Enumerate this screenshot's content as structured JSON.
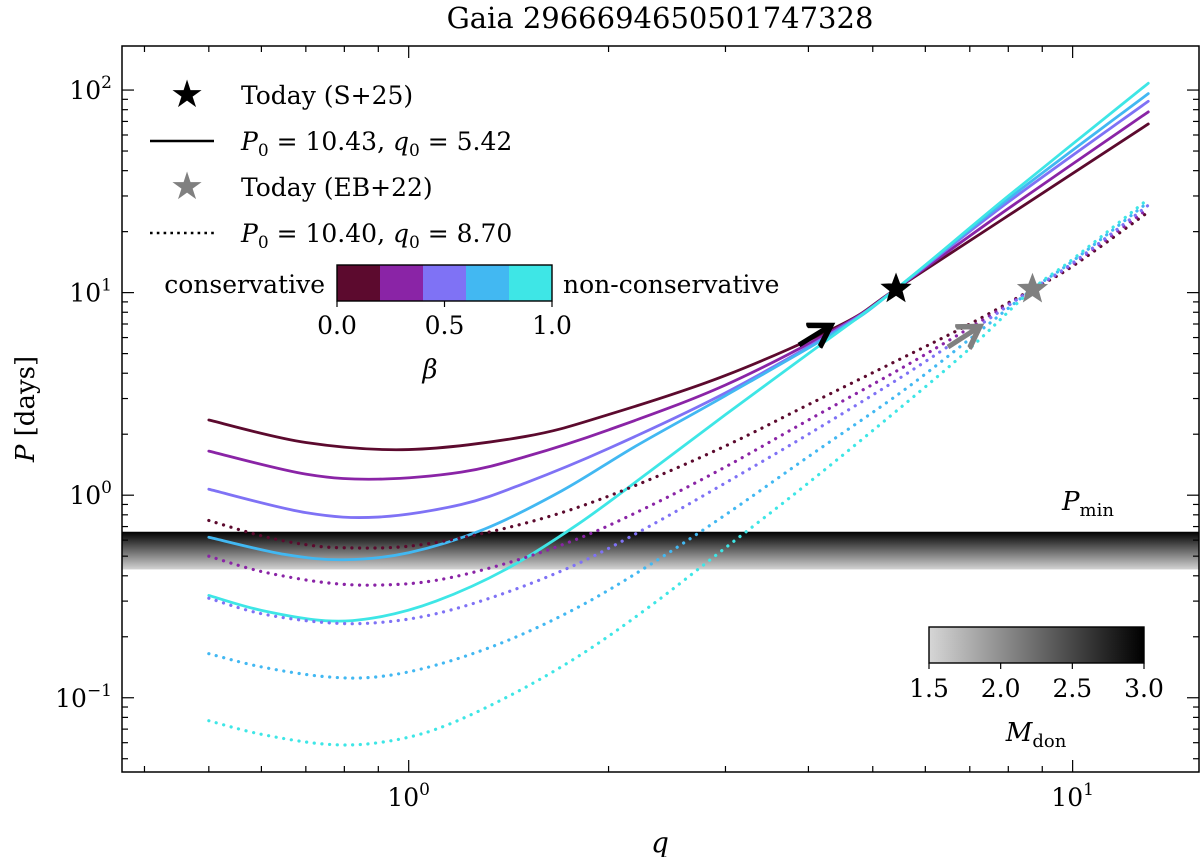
{
  "chart_data": {
    "type": "line",
    "title": "Gaia 2966694650501747328",
    "xlabel_var": "q",
    "ylabel_var": "P",
    "ylabel_unit": "[days]",
    "xscale": "log",
    "yscale": "log",
    "xlim": [
      0.37,
      15.5
    ],
    "ylim": [
      0.043,
      165
    ],
    "x_ticks": [
      {
        "value": 1,
        "base": "10",
        "exp": "0"
      },
      {
        "value": 10,
        "base": "10",
        "exp": "1"
      }
    ],
    "y_ticks": [
      {
        "value": 0.1,
        "base": "10",
        "exp": "−1"
      },
      {
        "value": 1,
        "base": "10",
        "exp": "0"
      },
      {
        "value": 10,
        "base": "10",
        "exp": "1"
      },
      {
        "value": 100,
        "base": "10",
        "exp": "2"
      }
    ],
    "legend": {
      "today_s25": "Today (S+25)",
      "solid_sym": "P",
      "solid_sub": "0",
      "solid_rest": " = 10.43, ",
      "solid_q": "q",
      "solid_qsub": "0",
      "solid_qval": " = 5.42",
      "today_eb22": "Today (EB+22)",
      "dotted_sym": "P",
      "dotted_sub": "0",
      "dotted_rest": " = 10.40, ",
      "dotted_q": "q",
      "dotted_qsub": "0",
      "dotted_qval": " = 8.70"
    },
    "beta_colorbar": {
      "left_label": "conservative",
      "right_label": "non-conservative",
      "ticks": [
        "0.0",
        "0.5",
        "1.0"
      ],
      "label": "β",
      "colors": [
        "#5c0a2e",
        "#8a24a6",
        "#7f72f5",
        "#42b8f2",
        "#3ee6e6"
      ]
    },
    "pmin": {
      "label_main": "P",
      "label_sub": "min",
      "y_range": [
        0.43,
        0.66
      ]
    },
    "mdon_colorbar": {
      "ticks": [
        "1.5",
        "2.0",
        "2.5",
        "3.0"
      ],
      "label_main": "M",
      "label_sub": "don"
    },
    "today_points": [
      {
        "name": "S+25",
        "q": 5.42,
        "P": 10.43,
        "color": "#000000"
      },
      {
        "name": "EB+22",
        "q": 8.7,
        "P": 10.4,
        "color": "#808080"
      }
    ],
    "series": [
      {
        "style": "solid",
        "beta": 0.0,
        "color": "#5c0a2e",
        "points": [
          [
            0.5,
            2.35
          ],
          [
            0.7,
            1.82
          ],
          [
            1.0,
            1.68
          ],
          [
            1.5,
            1.95
          ],
          [
            2.0,
            2.5
          ],
          [
            3.0,
            3.9
          ],
          [
            4.5,
            7.0
          ],
          [
            5.42,
            10.43
          ],
          [
            8.0,
            24
          ],
          [
            13.0,
            68
          ]
        ]
      },
      {
        "style": "solid",
        "beta": 0.25,
        "color": "#8a24a6",
        "points": [
          [
            0.5,
            1.65
          ],
          [
            0.7,
            1.27
          ],
          [
            0.9,
            1.2
          ],
          [
            1.2,
            1.3
          ],
          [
            1.5,
            1.55
          ],
          [
            2.0,
            2.1
          ],
          [
            3.0,
            3.5
          ],
          [
            4.5,
            6.9
          ],
          [
            5.42,
            10.43
          ],
          [
            8.0,
            26
          ],
          [
            13.0,
            78
          ]
        ]
      },
      {
        "style": "solid",
        "beta": 0.5,
        "color": "#7f72f5",
        "points": [
          [
            0.5,
            1.07
          ],
          [
            0.7,
            0.82
          ],
          [
            0.9,
            0.78
          ],
          [
            1.2,
            0.9
          ],
          [
            1.5,
            1.15
          ],
          [
            2.0,
            1.7
          ],
          [
            3.0,
            3.2
          ],
          [
            4.5,
            6.8
          ],
          [
            5.42,
            10.43
          ],
          [
            8.0,
            28
          ],
          [
            13.0,
            88
          ]
        ]
      },
      {
        "style": "solid",
        "beta": 0.75,
        "color": "#42b8f2",
        "points": [
          [
            0.5,
            0.62
          ],
          [
            0.65,
            0.51
          ],
          [
            0.8,
            0.48
          ],
          [
            1.0,
            0.52
          ],
          [
            1.3,
            0.68
          ],
          [
            1.7,
            1.05
          ],
          [
            2.2,
            1.75
          ],
          [
            3.0,
            3.1
          ],
          [
            4.5,
            6.7
          ],
          [
            5.42,
            10.43
          ],
          [
            8.0,
            29
          ],
          [
            13.0,
            96
          ]
        ]
      },
      {
        "style": "solid",
        "beta": 1.0,
        "color": "#3ee6e6",
        "points": [
          [
            0.5,
            0.32
          ],
          [
            0.6,
            0.27
          ],
          [
            0.75,
            0.24
          ],
          [
            0.9,
            0.25
          ],
          [
            1.1,
            0.3
          ],
          [
            1.4,
            0.43
          ],
          [
            1.8,
            0.72
          ],
          [
            2.3,
            1.3
          ],
          [
            3.0,
            2.5
          ],
          [
            4.0,
            5.0
          ],
          [
            5.42,
            10.43
          ],
          [
            8.0,
            30
          ],
          [
            13.0,
            108
          ]
        ]
      },
      {
        "style": "dotted",
        "beta": 0.0,
        "color": "#5c0a2e",
        "points": [
          [
            0.5,
            0.75
          ],
          [
            0.6,
            0.63
          ],
          [
            0.7,
            0.57
          ],
          [
            0.8,
            0.55
          ],
          [
            1.0,
            0.56
          ],
          [
            1.3,
            0.65
          ],
          [
            1.7,
            0.82
          ],
          [
            2.2,
            1.12
          ],
          [
            3.0,
            1.75
          ],
          [
            4.0,
            2.8
          ],
          [
            5.5,
            4.7
          ],
          [
            7.0,
            7.0
          ],
          [
            8.7,
            10.4
          ],
          [
            10.0,
            13.5
          ],
          [
            13.0,
            25
          ]
        ]
      },
      {
        "style": "dotted",
        "beta": 0.25,
        "color": "#8a24a6",
        "points": [
          [
            0.5,
            0.5
          ],
          [
            0.6,
            0.42
          ],
          [
            0.75,
            0.37
          ],
          [
            0.9,
            0.36
          ],
          [
            1.1,
            0.38
          ],
          [
            1.4,
            0.46
          ],
          [
            1.8,
            0.61
          ],
          [
            2.3,
            0.88
          ],
          [
            3.0,
            1.38
          ],
          [
            4.0,
            2.35
          ],
          [
            5.5,
            4.2
          ],
          [
            7.0,
            6.7
          ],
          [
            8.7,
            10.4
          ],
          [
            10.0,
            13.8
          ],
          [
            13.0,
            26
          ]
        ]
      },
      {
        "style": "dotted",
        "beta": 0.5,
        "color": "#7f72f5",
        "points": [
          [
            0.5,
            0.31
          ],
          [
            0.6,
            0.26
          ],
          [
            0.75,
            0.235
          ],
          [
            0.9,
            0.235
          ],
          [
            1.1,
            0.26
          ],
          [
            1.4,
            0.33
          ],
          [
            1.8,
            0.46
          ],
          [
            2.3,
            0.7
          ],
          [
            3.0,
            1.15
          ],
          [
            4.0,
            2.0
          ],
          [
            5.5,
            3.8
          ],
          [
            7.0,
            6.4
          ],
          [
            8.7,
            10.4
          ],
          [
            10.0,
            14.0
          ],
          [
            13.0,
            27
          ]
        ]
      },
      {
        "style": "dotted",
        "beta": 0.75,
        "color": "#42b8f2",
        "points": [
          [
            0.5,
            0.165
          ],
          [
            0.6,
            0.142
          ],
          [
            0.75,
            0.127
          ],
          [
            0.9,
            0.127
          ],
          [
            1.1,
            0.145
          ],
          [
            1.4,
            0.19
          ],
          [
            1.8,
            0.28
          ],
          [
            2.3,
            0.45
          ],
          [
            3.0,
            0.8
          ],
          [
            4.0,
            1.55
          ],
          [
            5.5,
            3.2
          ],
          [
            7.0,
            5.9
          ],
          [
            8.7,
            10.4
          ],
          [
            10.0,
            14.3
          ],
          [
            13.0,
            28
          ]
        ]
      },
      {
        "style": "dotted",
        "beta": 1.0,
        "color": "#3ee6e6",
        "points": [
          [
            0.5,
            0.077
          ],
          [
            0.6,
            0.066
          ],
          [
            0.75,
            0.059
          ],
          [
            0.9,
            0.06
          ],
          [
            1.1,
            0.07
          ],
          [
            1.4,
            0.1
          ],
          [
            1.8,
            0.16
          ],
          [
            2.3,
            0.28
          ],
          [
            3.0,
            0.55
          ],
          [
            4.0,
            1.15
          ],
          [
            5.5,
            2.7
          ],
          [
            7.0,
            5.3
          ],
          [
            8.7,
            10.4
          ],
          [
            10.0,
            14.6
          ],
          [
            13.0,
            29
          ]
        ]
      }
    ]
  }
}
